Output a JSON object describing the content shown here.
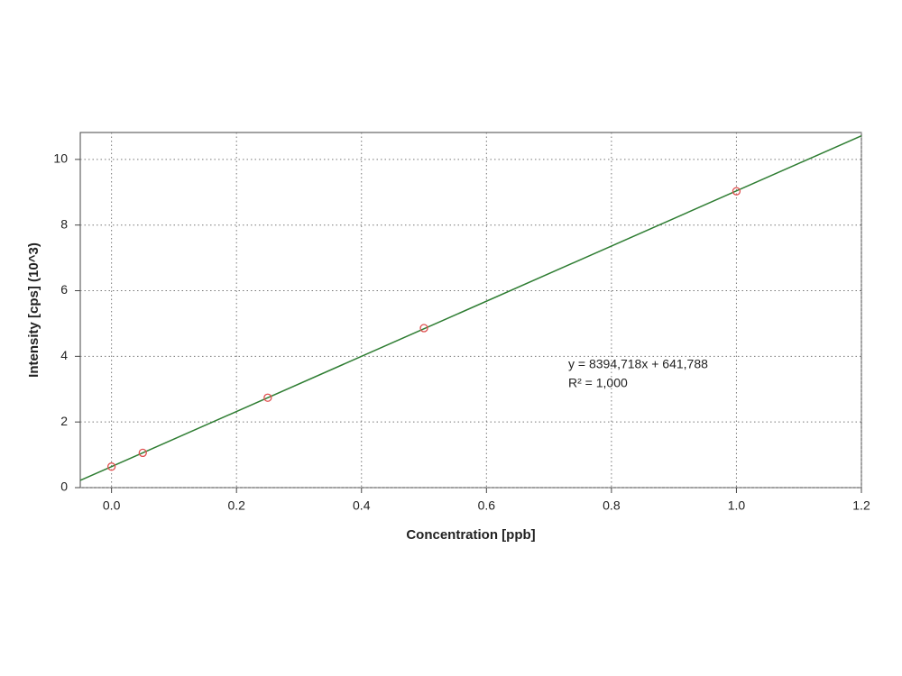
{
  "chart_data": {
    "type": "scatter",
    "x_label": "Concentration [ppb]",
    "y_label": "Intensity [cps] (10^3)",
    "x": [
      0,
      0.05,
      0.25,
      0.5,
      1.0
    ],
    "values": [
      0.64,
      1.06,
      2.74,
      4.86,
      9.03
    ],
    "color": "#e05050",
    "fit_line": {
      "x": [
        -0.05,
        1.2
      ],
      "values": [
        0.22,
        10.72
      ],
      "color": "#2e7d32"
    },
    "annotations": [
      "y = 8394,718x + 641,788",
      "R² = 1,000"
    ],
    "xlim": [
      -0.05,
      1.2
    ],
    "ylim": [
      0,
      10.82
    ],
    "xticks": [
      {
        "value": 0,
        "label": "0.0"
      },
      0.2,
      0.4,
      0.6,
      0.8,
      {
        "value": 1.0,
        "label": "1.0"
      },
      1.2
    ],
    "yticks": [
      0,
      2,
      4,
      6,
      8,
      10
    ],
    "grid": true
  }
}
